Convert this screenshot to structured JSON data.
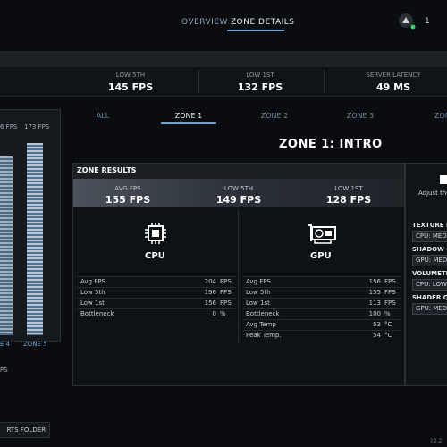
{
  "nav": {
    "tabs": [
      "OVERVIEW",
      "ZONE DETAILS"
    ],
    "badge": "1"
  },
  "stats": [
    {
      "label": "LOW 5TH",
      "value": "145 FPS"
    },
    {
      "label": "LOW 1ST",
      "value": "132 FPS"
    },
    {
      "label": "SERVER LATENCY",
      "value": "49 MS"
    }
  ],
  "left_panel": {
    "top_labels": [
      "6 FPS",
      "173 FPS"
    ],
    "zone_labels": [
      "E 4",
      "ZONE 5"
    ],
    "footer": "PS"
  },
  "folder_button": "RTS FOLDER",
  "zone_tabs": [
    "ALL",
    "ZONE 1",
    "ZONE 2",
    "ZONE 3",
    "ZONE"
  ],
  "zone_title": "ZONE 1: INTRO",
  "results": {
    "title": "ZONE RESULTS",
    "summary": [
      {
        "label": "AVG FPS",
        "value": "155 FPS"
      },
      {
        "label": "LOW 5TH",
        "value": "149 FPS"
      },
      {
        "label": "LOW 1ST",
        "value": "128 FPS"
      }
    ],
    "cpu": {
      "name": "CPU",
      "rows": [
        [
          "Avg FPS",
          "204",
          "FPS"
        ],
        [
          "Low 5th",
          "196",
          "FPS"
        ],
        [
          "Low 1st",
          "156",
          "FPS"
        ],
        [
          "Bottleneck",
          "0",
          "%"
        ]
      ]
    },
    "gpu": {
      "name": "GPU",
      "rows": [
        [
          "Avg FPS",
          "156",
          "FPS"
        ],
        [
          "Low 5th",
          "155",
          "FPS"
        ],
        [
          "Low 1st",
          "113",
          "FPS"
        ],
        [
          "Bottleneck",
          "100",
          "%"
        ],
        [
          "Avg Temp",
          "53",
          "°C"
        ],
        [
          "Peak Temp.",
          "54",
          "°C"
        ]
      ]
    }
  },
  "settings": {
    "subtitle": "Adjust the",
    "items": [
      {
        "label": "TEXTURE F",
        "value": "CPU: MED"
      },
      {
        "label": "SHADOW Q",
        "value": "GPU: MED"
      },
      {
        "label": "VOLUMETR",
        "value": "CPU: LOW"
      },
      {
        "label": "SHADER QU",
        "value": "GPU: MED"
      }
    ]
  },
  "version": "12.2"
}
